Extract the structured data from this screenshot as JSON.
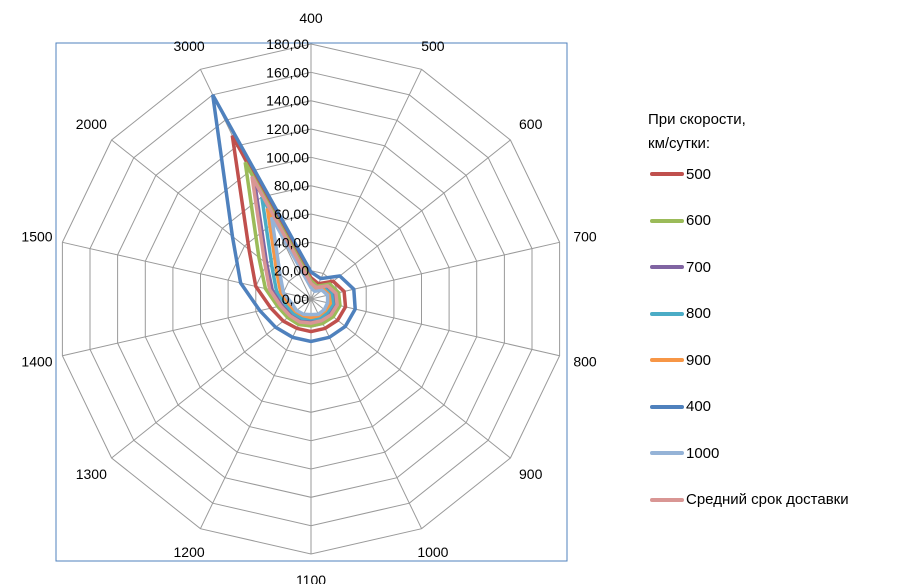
{
  "chart_data": {
    "type": "radar",
    "categories": [
      "400",
      "500",
      "600",
      "700",
      "800",
      "900",
      "1000",
      "1100",
      "1200",
      "1300",
      "1400",
      "1500",
      "2000",
      "3000"
    ],
    "ylim": [
      0,
      180
    ],
    "tick_labels": [
      "0,00",
      "20,00",
      "40,00",
      "60,00",
      "80,00",
      "100,00",
      "120,00",
      "140,00",
      "160,00",
      "180,00"
    ],
    "grid": true,
    "legend_title": "При скорости,\nкм/сутки:",
    "legend_position": "right",
    "series": [
      {
        "name": "500",
        "color": "#C0504D",
        "values": [
          15,
          12,
          20,
          24,
          25,
          24,
          23,
          23,
          23,
          25,
          29,
          40,
          56,
          128
        ]
      },
      {
        "name": "600",
        "color": "#9BBB59",
        "values": [
          13,
          10,
          17,
          20,
          21,
          20,
          19,
          19,
          20,
          21,
          24,
          33,
          47,
          107
        ]
      },
      {
        "name": "700",
        "color": "#8064A2",
        "values": [
          11,
          9,
          14,
          17,
          18,
          17,
          17,
          16,
          17,
          18,
          21,
          28,
          40,
          92
        ]
      },
      {
        "name": "800",
        "color": "#4BACC6",
        "values": [
          10,
          8,
          12,
          15,
          16,
          15,
          15,
          14,
          15,
          16,
          18,
          25,
          35,
          80
        ]
      },
      {
        "name": "900",
        "color": "#F79646",
        "values": [
          9,
          7,
          11,
          13,
          14,
          13,
          13,
          13,
          13,
          14,
          16,
          22,
          31,
          71
        ]
      },
      {
        "name": "400",
        "color": "#4F81BD",
        "values": [
          19,
          16,
          26,
          31,
          32,
          31,
          30,
          30,
          30,
          32,
          37,
          51,
          71,
          160
        ]
      },
      {
        "name": "1000",
        "color": "#95B3D7",
        "values": [
          8,
          6,
          10,
          12,
          12,
          12,
          12,
          11,
          12,
          13,
          14,
          20,
          28,
          64
        ]
      },
      {
        "name": "Средний срок доставки",
        "color": "#D99694",
        "values": [
          11,
          9,
          15,
          18,
          19,
          18,
          17,
          17,
          18,
          19,
          22,
          30,
          42,
          96
        ]
      }
    ]
  }
}
